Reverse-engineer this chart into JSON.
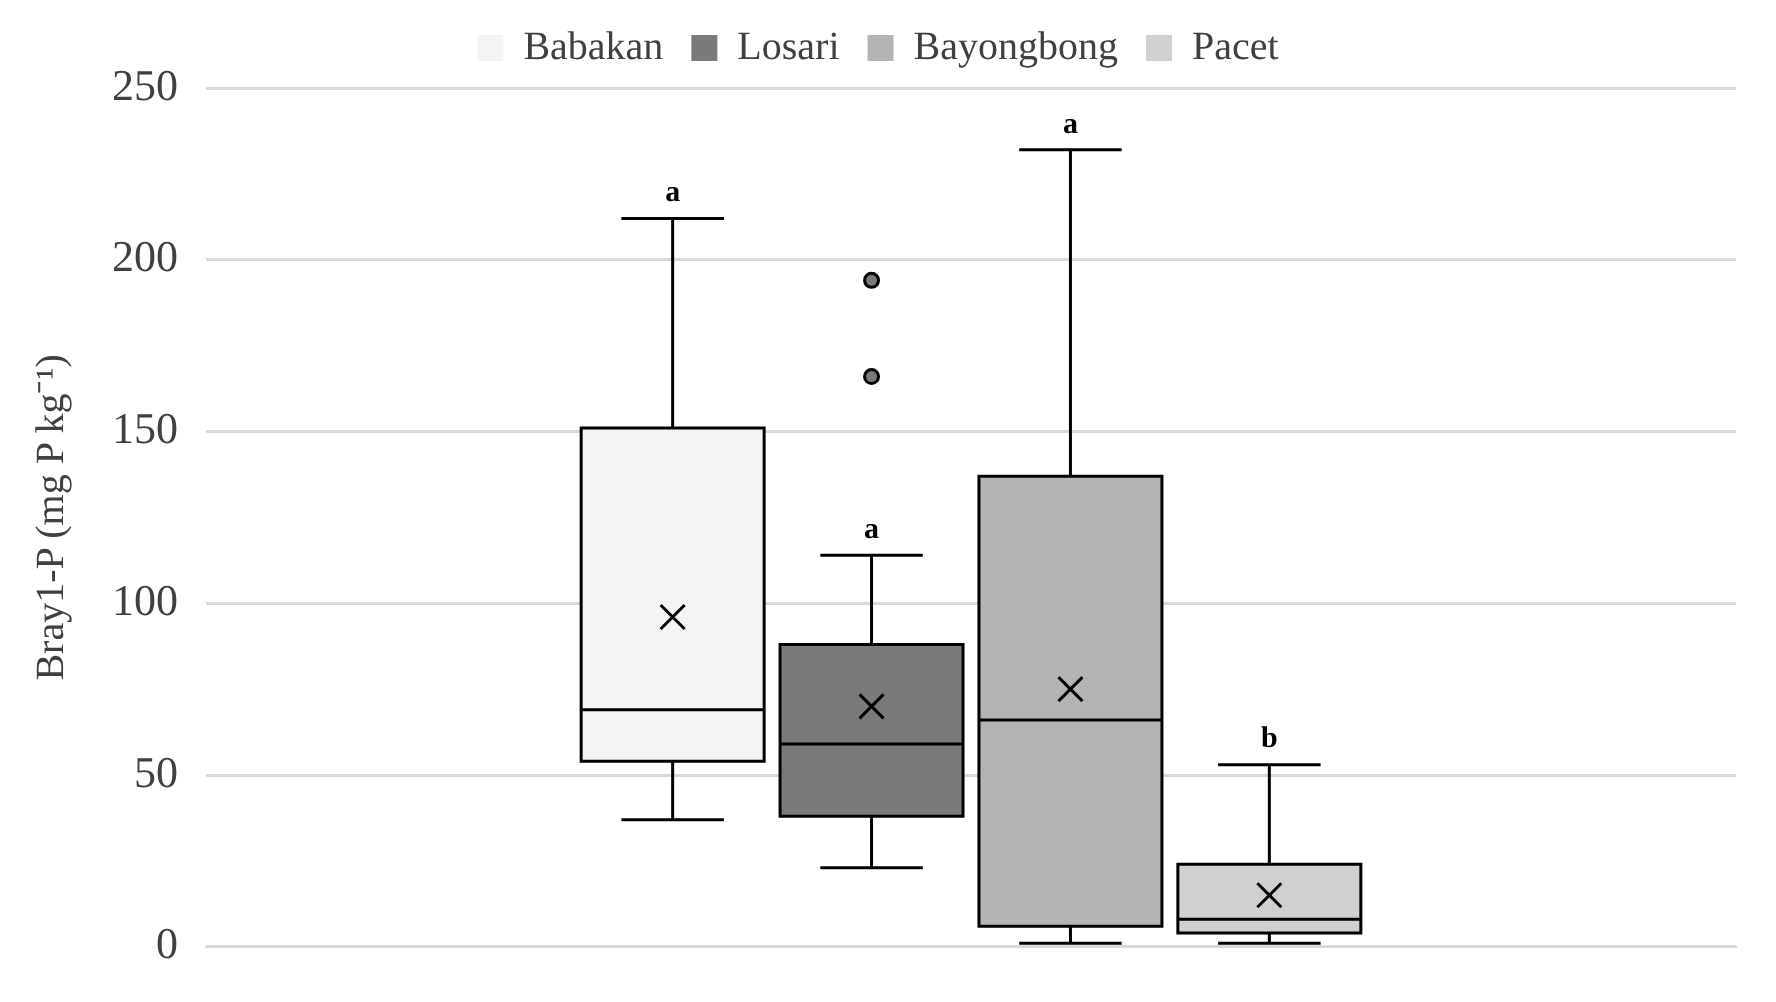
{
  "chart_data": {
    "type": "box",
    "ylabel": "Bray1-P (mg P kg⁻¹)",
    "categories": [
      null
    ],
    "ylim": [
      0,
      250
    ],
    "yticks": [
      0,
      50,
      100,
      150,
      200,
      250
    ],
    "grid": "y",
    "legend": "top",
    "series": [
      {
        "name": "Babakan",
        "color": "#f4f4f4",
        "boxes": [
          {
            "low": 37,
            "q1": 54,
            "median": 69,
            "q3": 151,
            "high": 212,
            "mean": 96
          }
        ]
      },
      {
        "name": "Losari",
        "color": "#7a7a7a",
        "boxes": [
          {
            "low": 23,
            "q1": 38,
            "median": 59,
            "q3": 88,
            "high": 114,
            "mean": 70,
            "outliers": [
              166,
              194
            ]
          }
        ]
      },
      {
        "name": "Bayongbong",
        "color": "#b4b4b4",
        "boxes": [
          {
            "low": 1,
            "q1": 6,
            "median": 66,
            "q3": 137,
            "high": 232,
            "mean": 75
          }
        ]
      },
      {
        "name": "Pacet",
        "color": "#d0d0d0",
        "boxes": [
          {
            "low": 1,
            "q1": 4,
            "median": 8,
            "q3": 24,
            "high": 53,
            "mean": 15
          }
        ]
      }
    ],
    "annotations": [
      "a",
      "a",
      "a",
      "b"
    ]
  }
}
